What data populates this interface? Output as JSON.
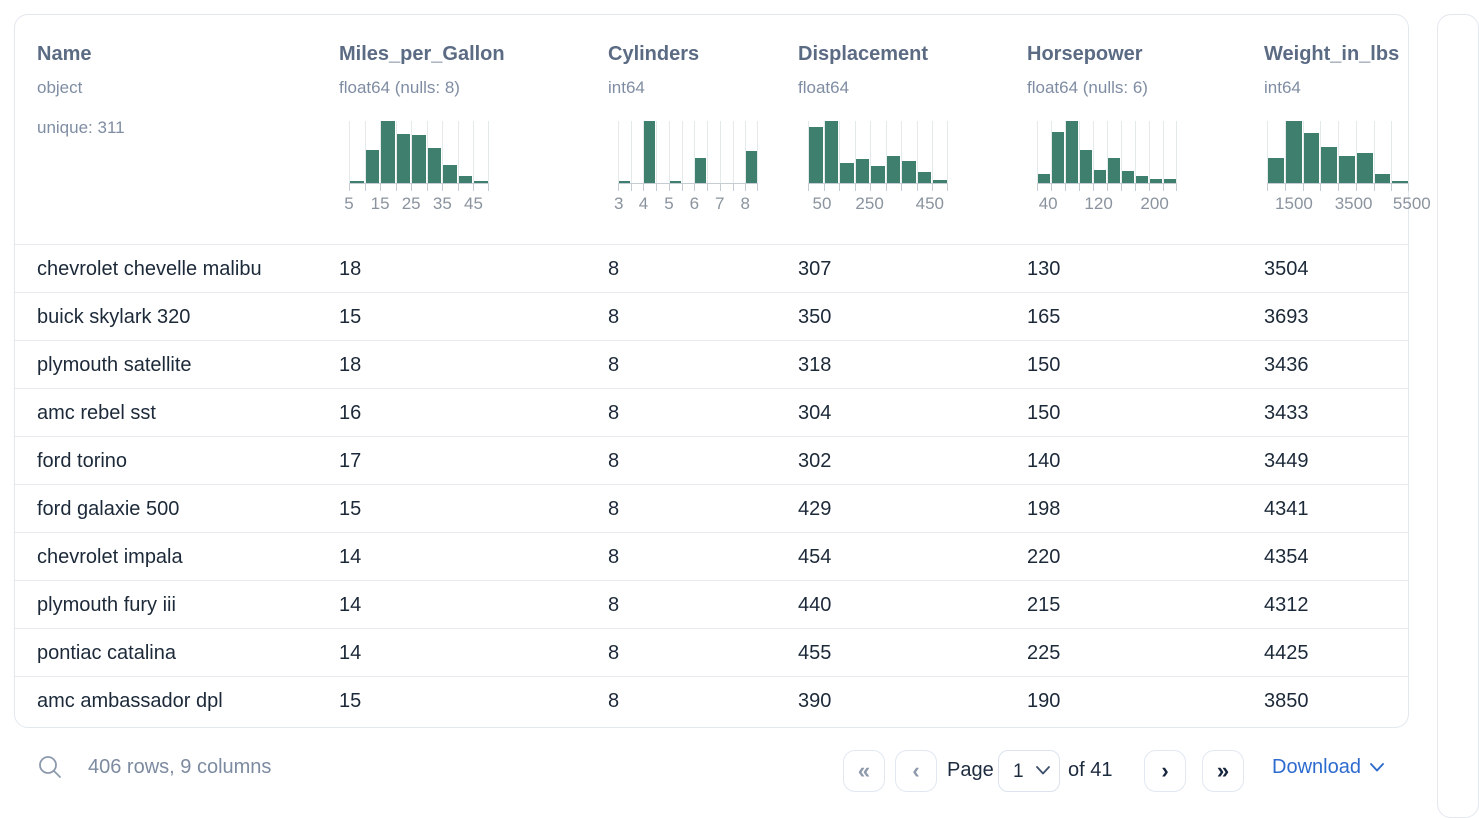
{
  "table": {
    "columns": [
      {
        "name": "Name",
        "dtype": "object",
        "meta": "unique: 311",
        "hist": null
      },
      {
        "name": "Miles_per_Gallon",
        "dtype": "float64 (nulls: 8)",
        "meta": "",
        "hist": {
          "type": "bar",
          "heights": [
            3,
            54,
            100,
            79,
            77,
            57,
            29,
            12,
            3
          ],
          "labels": [
            {
              "t": "5",
              "f": 0.0
            },
            {
              "t": "15",
              "f": 0.222
            },
            {
              "t": "25",
              "f": 0.444
            },
            {
              "t": "35",
              "f": 0.667
            },
            {
              "t": "45",
              "f": 0.889
            }
          ]
        }
      },
      {
        "name": "Cylinders",
        "dtype": "int64",
        "meta": "",
        "hist": {
          "type": "bar",
          "heights": [
            3,
            0,
            100,
            0,
            3,
            0,
            40,
            0,
            0,
            0,
            52
          ],
          "labels": [
            {
              "t": "3",
              "f": 0.005
            },
            {
              "t": "4",
              "f": 0.182
            },
            {
              "t": "5",
              "f": 0.364
            },
            {
              "t": "6",
              "f": 0.545
            },
            {
              "t": "7",
              "f": 0.727
            },
            {
              "t": "8",
              "f": 0.909
            }
          ]
        }
      },
      {
        "name": "Displacement",
        "dtype": "float64",
        "meta": "",
        "hist": {
          "type": "bar",
          "heights": [
            90,
            100,
            33,
            39,
            27,
            43,
            36,
            18,
            5
          ],
          "labels": [
            {
              "t": "50",
              "f": 0.1
            },
            {
              "t": "250",
              "f": 0.44
            },
            {
              "t": "450",
              "f": 0.87
            }
          ]
        }
      },
      {
        "name": "Horsepower",
        "dtype": "float64 (nulls: 6)",
        "meta": "",
        "hist": {
          "type": "bar",
          "heights": [
            15,
            82,
            100,
            54,
            21,
            40,
            19,
            11,
            7,
            6
          ],
          "labels": [
            {
              "t": "40",
              "f": 0.08
            },
            {
              "t": "120",
              "f": 0.44
            },
            {
              "t": "200",
              "f": 0.84
            }
          ]
        }
      },
      {
        "name": "Weight_in_lbs",
        "dtype": "int64",
        "meta": "",
        "hist": {
          "type": "bar",
          "heights": [
            40,
            100,
            80,
            58,
            43,
            48,
            15,
            3
          ],
          "labels": [
            {
              "t": "1500",
              "f": 0.19
            },
            {
              "t": "3500",
              "f": 0.61
            },
            {
              "t": "5500",
              "f": 1.02
            }
          ]
        }
      }
    ],
    "rows": [
      [
        "chevrolet chevelle malibu",
        "18",
        "8",
        "307",
        "130",
        "3504"
      ],
      [
        "buick skylark 320",
        "15",
        "8",
        "350",
        "165",
        "3693"
      ],
      [
        "plymouth satellite",
        "18",
        "8",
        "318",
        "150",
        "3436"
      ],
      [
        "amc rebel sst",
        "16",
        "8",
        "304",
        "150",
        "3433"
      ],
      [
        "ford torino",
        "17",
        "8",
        "302",
        "140",
        "3449"
      ],
      [
        "ford galaxie 500",
        "15",
        "8",
        "429",
        "198",
        "4341"
      ],
      [
        "chevrolet impala",
        "14",
        "8",
        "454",
        "220",
        "4354"
      ],
      [
        "plymouth fury iii",
        "14",
        "8",
        "440",
        "215",
        "4312"
      ],
      [
        "pontiac catalina",
        "14",
        "8",
        "455",
        "225",
        "4425"
      ],
      [
        "amc ambassador dpl",
        "15",
        "8",
        "390",
        "190",
        "3850"
      ]
    ]
  },
  "footer": {
    "summary": "406 rows, 9 columns",
    "page_label": "Page",
    "page_value": "1",
    "of_label": "of 41",
    "download_label": "Download",
    "pagination": {
      "first": {
        "glyph": "«",
        "enabled": false
      },
      "prev": {
        "glyph": "‹",
        "enabled": false
      },
      "next": {
        "glyph": "›",
        "enabled": true
      },
      "last": {
        "glyph": "»",
        "enabled": true
      }
    }
  },
  "icons": {
    "search": "magnifier-outline",
    "page_select_chevron": "chevron-down",
    "download_chevron": "chevron-down"
  },
  "colors": {
    "histogram_bar": "#3e7f6d",
    "header_text": "#5c6b84",
    "dtype_text": "#7f8da3",
    "row_text": "#1c2939",
    "card_border": "#e3e8ef",
    "row_border": "#e7ebf1",
    "footer_text": "#7d8ba0",
    "download_link": "#2e6bcf",
    "pagination_enabled": "#17263d",
    "pagination_disabled": "#8e99ab"
  }
}
